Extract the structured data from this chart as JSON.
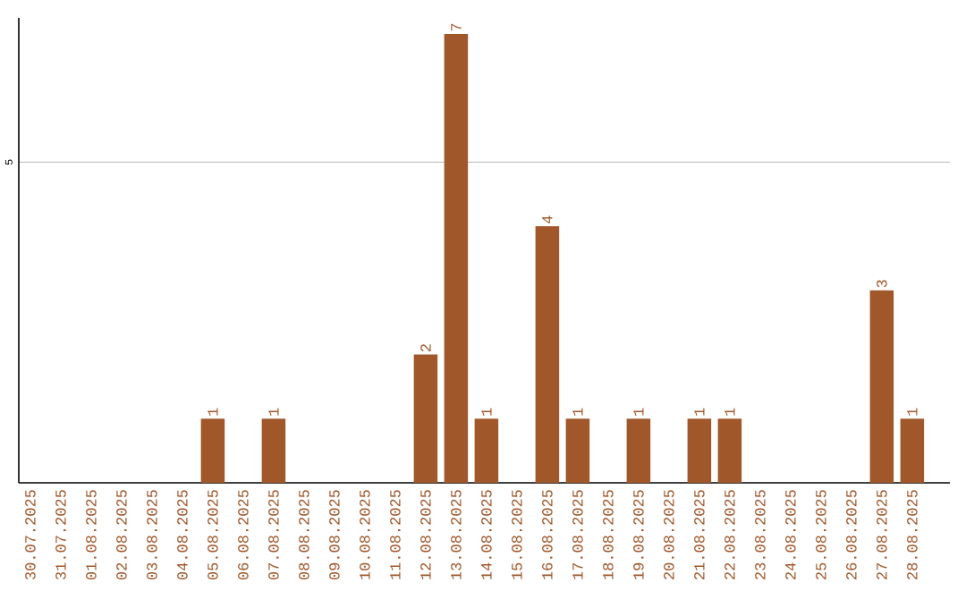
{
  "chart_data": {
    "type": "bar",
    "categories": [
      "30.07.2025",
      "31.07.2025",
      "01.08.2025",
      "02.08.2025",
      "03.08.2025",
      "04.08.2025",
      "05.08.2025",
      "06.08.2025",
      "07.08.2025",
      "08.08.2025",
      "09.08.2025",
      "10.08.2025",
      "11.08.2025",
      "12.08.2025",
      "13.08.2025",
      "14.08.2025",
      "15.08.2025",
      "16.08.2025",
      "17.08.2025",
      "18.08.2025",
      "19.08.2025",
      "20.08.2025",
      "21.08.2025",
      "22.08.2025",
      "23.08.2025",
      "24.08.2025",
      "25.08.2025",
      "26.08.2025",
      "27.08.2025",
      "28.08.2025"
    ],
    "values": [
      0,
      0,
      0,
      0,
      0,
      0,
      1,
      0,
      1,
      0,
      0,
      0,
      0,
      2,
      7,
      1,
      0,
      4,
      1,
      0,
      1,
      0,
      1,
      1,
      0,
      0,
      0,
      0,
      3,
      1
    ],
    "value_labels": [
      null,
      null,
      null,
      null,
      null,
      null,
      "1",
      null,
      "1",
      null,
      null,
      null,
      null,
      "2",
      "7",
      "1",
      null,
      "4",
      "1",
      null,
      "1",
      null,
      "1",
      "1",
      null,
      null,
      null,
      null,
      "3",
      "1"
    ],
    "color": "#a0572a",
    "ylim": [
      0,
      7.25
    ],
    "yticks": [
      5
    ],
    "grid": "y"
  }
}
